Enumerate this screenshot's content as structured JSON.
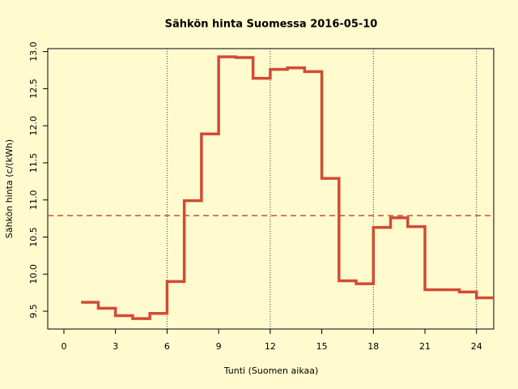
{
  "chart_data": {
    "type": "step",
    "title": "Sähkön hinta Suomessa 2016-05-10",
    "xlabel": "Tunti (Suomen aikaa)",
    "ylabel": "Sähkön hinta (c/(kWh)",
    "x": [
      1,
      2,
      3,
      4,
      5,
      6,
      7,
      8,
      9,
      10,
      11,
      12,
      13,
      14,
      15,
      16,
      17,
      18,
      19,
      20,
      21,
      22,
      23,
      24
    ],
    "values": [
      9.62,
      9.54,
      9.44,
      9.4,
      9.47,
      9.9,
      10.99,
      11.89,
      12.93,
      12.92,
      12.64,
      12.76,
      12.78,
      12.73,
      11.29,
      9.91,
      9.87,
      10.63,
      10.76,
      10.64,
      9.79,
      9.79,
      9.76,
      9.68
    ],
    "color": "#d24b34",
    "mean": 10.79,
    "xlim": [
      -0.94,
      25
    ],
    "ylim": [
      9.26,
      13.04
    ],
    "xticks": [
      0,
      3,
      6,
      9,
      12,
      15,
      18,
      21,
      24
    ],
    "yticks": [
      9.5,
      {
        "value": 10,
        "label": "10.0"
      },
      10.5,
      {
        "value": 11,
        "label": "11.0"
      },
      11.5,
      {
        "value": 12,
        "label": "12.0"
      },
      12.5,
      {
        "value": 13,
        "label": "13.0"
      }
    ],
    "xgrid": [
      6,
      12,
      18,
      24
    ]
  }
}
